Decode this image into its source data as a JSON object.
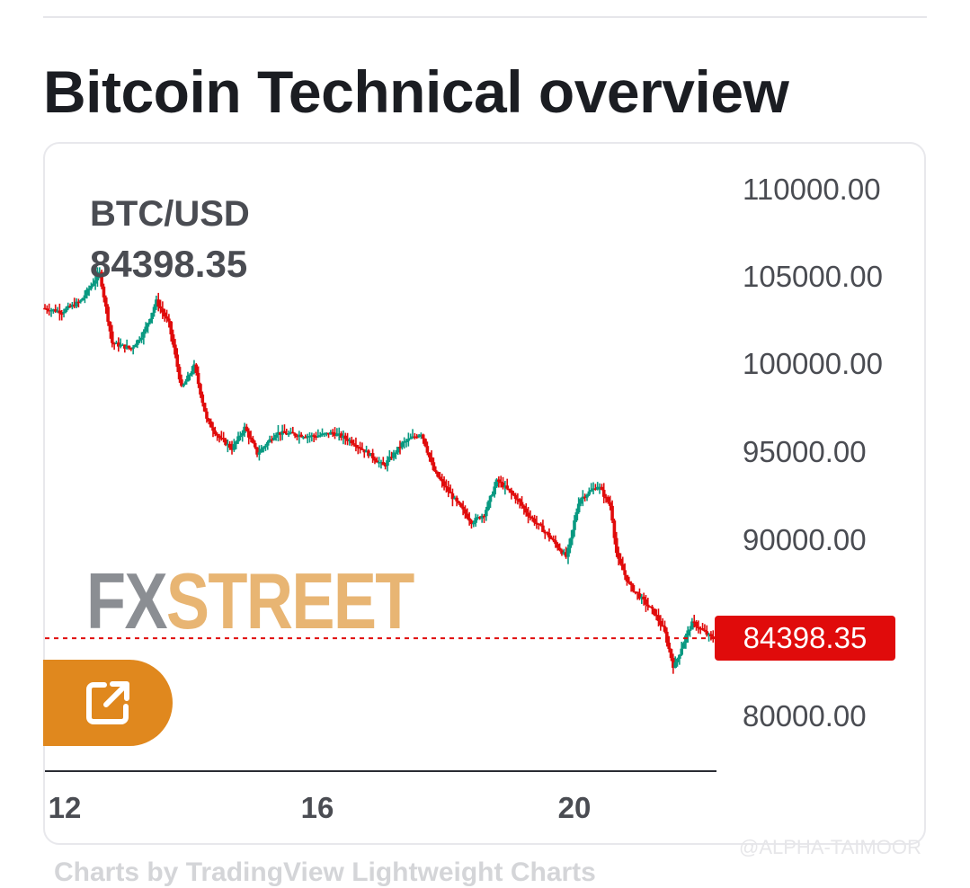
{
  "page": {
    "title": "Bitcoin Technical overview"
  },
  "chart_data": {
    "type": "candlestick",
    "symbol": "BTC/USD",
    "last_price": "84398.35",
    "last_price_value": 84398.35,
    "ylim": [
      78000,
      112000
    ],
    "y_ticks": [
      "110000.00",
      "105000.00",
      "100000.00",
      "95000.00",
      "90000.00",
      "80000.00"
    ],
    "x_ticks": [
      "12",
      "16",
      "20"
    ],
    "x_range_days": [
      12.0,
      22.3
    ],
    "grid": false,
    "colors": {
      "up": "#089981",
      "down": "#e00b0b",
      "price_line": "#e00b0b"
    },
    "series": [
      {
        "path": [
          [
            12.0,
            103200
          ],
          [
            12.3,
            103000
          ],
          [
            12.6,
            103600
          ],
          [
            12.9,
            105200
          ],
          [
            13.1,
            101200
          ],
          [
            13.4,
            100900
          ],
          [
            13.6,
            101800
          ],
          [
            13.8,
            103600
          ],
          [
            14.0,
            102300
          ],
          [
            14.2,
            98600
          ],
          [
            14.4,
            99900
          ],
          [
            14.6,
            96800
          ],
          [
            14.8,
            95800
          ],
          [
            15.0,
            95200
          ],
          [
            15.2,
            96400
          ],
          [
            15.4,
            94900
          ],
          [
            15.7,
            96100
          ],
          [
            16.0,
            96000
          ],
          [
            16.3,
            95900
          ],
          [
            16.6,
            96100
          ],
          [
            16.9,
            95600
          ],
          [
            17.2,
            94800
          ],
          [
            17.4,
            94200
          ],
          [
            17.7,
            95500
          ],
          [
            18.0,
            96100
          ],
          [
            18.2,
            93900
          ],
          [
            18.5,
            92400
          ],
          [
            18.8,
            91000
          ],
          [
            19.0,
            91500
          ],
          [
            19.2,
            93400
          ],
          [
            19.5,
            92400
          ],
          [
            19.7,
            91400
          ],
          [
            20.0,
            90300
          ],
          [
            20.3,
            89000
          ],
          [
            20.5,
            92300
          ],
          [
            20.8,
            93100
          ],
          [
            21.0,
            91900
          ],
          [
            21.1,
            89000
          ],
          [
            21.3,
            87400
          ],
          [
            21.5,
            86600
          ],
          [
            21.7,
            85800
          ],
          [
            21.85,
            84800
          ],
          [
            22.0,
            82700
          ],
          [
            22.2,
            84600
          ],
          [
            22.3,
            85300
          ],
          [
            22.5,
            84700
          ],
          [
            22.6,
            84398.35
          ]
        ]
      }
    ]
  },
  "branding": {
    "logo_fx": "FX",
    "logo_street": "STREET",
    "attribution": "Charts by TradingView Lightweight Charts",
    "watermark": "@ALPHA-TAIMOOR"
  },
  "actions": {
    "external_icon": "external-link-icon"
  }
}
